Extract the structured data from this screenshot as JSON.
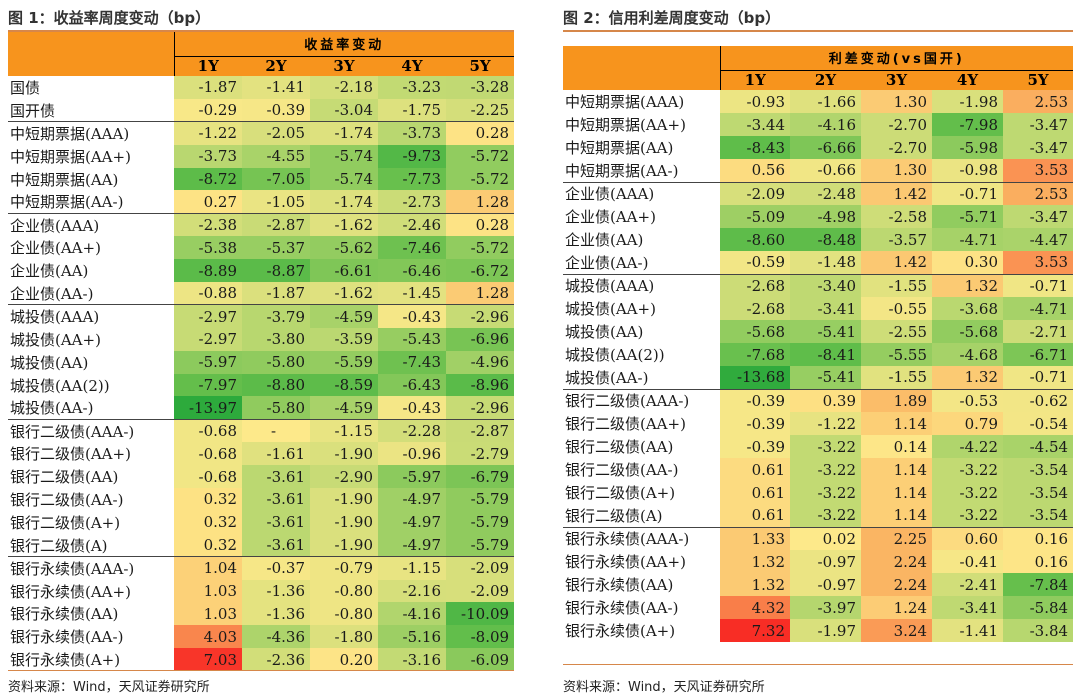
{
  "colors": {
    "accent": "#f7941d",
    "rule": "#d6874a"
  },
  "left": {
    "title": "图 1：收益率周度变动（bp）",
    "header_top": "收益率变动",
    "years": [
      "1Y",
      "2Y",
      "3Y",
      "4Y",
      "5Y"
    ],
    "source": "资料来源：Wind，天风证券研究所",
    "rows": [
      {
        "label": "国债",
        "values": [
          "-1.87",
          "-1.41",
          "-2.18",
          "-3.23",
          "-3.28"
        ],
        "group_start": false
      },
      {
        "label": "国开债",
        "values": [
          "-0.29",
          "-0.39",
          "-3.04",
          "-1.75",
          "-2.25"
        ],
        "group_start": false
      },
      {
        "label": "中短期票据(AAA)",
        "values": [
          "-1.22",
          "-2.05",
          "-1.74",
          "-3.73",
          "0.28"
        ],
        "group_start": true
      },
      {
        "label": "中短期票据(AA+)",
        "values": [
          "-3.73",
          "-4.55",
          "-5.74",
          "-9.73",
          "-5.72"
        ],
        "group_start": false
      },
      {
        "label": "中短期票据(AA)",
        "values": [
          "-8.72",
          "-7.05",
          "-5.74",
          "-7.73",
          "-5.72"
        ],
        "group_start": false
      },
      {
        "label": "中短期票据(AA-)",
        "values": [
          "0.27",
          "-1.05",
          "-1.74",
          "-2.73",
          "1.28"
        ],
        "group_start": false
      },
      {
        "label": "企业债(AAA)",
        "values": [
          "-2.38",
          "-2.87",
          "-1.62",
          "-2.46",
          "0.28"
        ],
        "group_start": true
      },
      {
        "label": "企业债(AA+)",
        "values": [
          "-5.38",
          "-5.37",
          "-5.62",
          "-7.46",
          "-5.72"
        ],
        "group_start": false
      },
      {
        "label": "企业债(AA)",
        "values": [
          "-8.89",
          "-8.87",
          "-6.61",
          "-6.46",
          "-6.72"
        ],
        "group_start": false
      },
      {
        "label": "企业债(AA-)",
        "values": [
          "-0.88",
          "-1.87",
          "-1.62",
          "-1.45",
          "1.28"
        ],
        "group_start": false
      },
      {
        "label": "城投债(AAA)",
        "values": [
          "-2.97",
          "-3.79",
          "-4.59",
          "-0.43",
          "-2.96"
        ],
        "group_start": true
      },
      {
        "label": "城投债(AA+)",
        "values": [
          "-2.97",
          "-3.80",
          "-3.59",
          "-5.43",
          "-6.96"
        ],
        "group_start": false
      },
      {
        "label": "城投债(AA)",
        "values": [
          "-5.97",
          "-5.80",
          "-5.59",
          "-7.43",
          "-4.96"
        ],
        "group_start": false
      },
      {
        "label": "城投债(AA(2))",
        "values": [
          "-7.97",
          "-8.80",
          "-8.59",
          "-6.43",
          "-8.96"
        ],
        "group_start": false
      },
      {
        "label": "城投债(AA-)",
        "values": [
          "-13.97",
          "-5.80",
          "-4.59",
          "-0.43",
          "-2.96"
        ],
        "group_start": false
      },
      {
        "label": "银行二级债(AAA-)",
        "values": [
          "-0.68",
          "-",
          "-1.15",
          "-2.28",
          "-2.87"
        ],
        "group_start": true
      },
      {
        "label": "银行二级债(AA+)",
        "values": [
          "-0.68",
          "-1.61",
          "-1.90",
          "-0.96",
          "-2.79"
        ],
        "group_start": false
      },
      {
        "label": "银行二级债(AA)",
        "values": [
          "-0.68",
          "-3.61",
          "-2.90",
          "-5.97",
          "-6.79"
        ],
        "group_start": false
      },
      {
        "label": "银行二级债(AA-)",
        "values": [
          "0.32",
          "-3.61",
          "-1.90",
          "-4.97",
          "-5.79"
        ],
        "group_start": false
      },
      {
        "label": "银行二级债(A+)",
        "values": [
          "0.32",
          "-3.61",
          "-1.90",
          "-4.97",
          "-5.79"
        ],
        "group_start": false
      },
      {
        "label": "银行二级债(A)",
        "values": [
          "0.32",
          "-3.61",
          "-1.90",
          "-4.97",
          "-5.79"
        ],
        "group_start": false
      },
      {
        "label": "银行永续债(AAA-)",
        "values": [
          "1.04",
          "-0.37",
          "-0.79",
          "-1.15",
          "-2.09"
        ],
        "group_start": true
      },
      {
        "label": "银行永续债(AA+)",
        "values": [
          "1.03",
          "-1.36",
          "-0.80",
          "-2.16",
          "-2.09"
        ],
        "group_start": false
      },
      {
        "label": "银行永续债(AA)",
        "values": [
          "1.03",
          "-1.36",
          "-0.80",
          "-4.16",
          "-10.09"
        ],
        "group_start": false
      },
      {
        "label": "银行永续债(AA-)",
        "values": [
          "4.03",
          "-4.36",
          "-1.80",
          "-5.16",
          "-8.09"
        ],
        "group_start": false
      },
      {
        "label": "银行永续债(A+)",
        "values": [
          "7.03",
          "-2.36",
          "0.20",
          "-3.16",
          "-6.09"
        ],
        "group_start": false
      }
    ]
  },
  "right": {
    "title": "图 2：信用利差周度变动（bp）",
    "header_top": "利差变动(vs国开)",
    "years": [
      "1Y",
      "2Y",
      "3Y",
      "4Y",
      "5Y"
    ],
    "source": "资料来源：Wind，天风证券研究所",
    "rows": [
      {
        "label": "中短期票据(AAA)",
        "values": [
          "-0.93",
          "-1.66",
          "1.30",
          "-1.98",
          "2.53"
        ],
        "group_start": false
      },
      {
        "label": "中短期票据(AA+)",
        "values": [
          "-3.44",
          "-4.16",
          "-2.70",
          "-7.98",
          "-3.47"
        ],
        "group_start": false
      },
      {
        "label": "中短期票据(AA)",
        "values": [
          "-8.43",
          "-6.66",
          "-2.70",
          "-5.98",
          "-3.47"
        ],
        "group_start": false
      },
      {
        "label": "中短期票据(AA-)",
        "values": [
          "0.56",
          "-0.66",
          "1.30",
          "-0.98",
          "3.53"
        ],
        "group_start": false
      },
      {
        "label": "企业债(AAA)",
        "values": [
          "-2.09",
          "-2.48",
          "1.42",
          "-0.71",
          "2.53"
        ],
        "group_start": true
      },
      {
        "label": "企业债(AA+)",
        "values": [
          "-5.09",
          "-4.98",
          "-2.58",
          "-5.71",
          "-3.47"
        ],
        "group_start": false
      },
      {
        "label": "企业债(AA)",
        "values": [
          "-8.60",
          "-8.48",
          "-3.57",
          "-4.71",
          "-4.47"
        ],
        "group_start": false
      },
      {
        "label": "企业债(AA-)",
        "values": [
          "-0.59",
          "-1.48",
          "1.42",
          "0.30",
          "3.53"
        ],
        "group_start": false
      },
      {
        "label": "城投债(AAA)",
        "values": [
          "-2.68",
          "-3.40",
          "-1.55",
          "1.32",
          "-0.71"
        ],
        "group_start": true
      },
      {
        "label": "城投债(AA+)",
        "values": [
          "-2.68",
          "-3.41",
          "-0.55",
          "-3.68",
          "-4.71"
        ],
        "group_start": false
      },
      {
        "label": "城投债(AA)",
        "values": [
          "-5.68",
          "-5.41",
          "-2.55",
          "-5.68",
          "-2.71"
        ],
        "group_start": false
      },
      {
        "label": "城投债(AA(2))",
        "values": [
          "-7.68",
          "-8.41",
          "-5.55",
          "-4.68",
          "-6.71"
        ],
        "group_start": false
      },
      {
        "label": "城投债(AA-)",
        "values": [
          "-13.68",
          "-5.41",
          "-1.55",
          "1.32",
          "-0.71"
        ],
        "group_start": false
      },
      {
        "label": "银行二级债(AAA-)",
        "values": [
          "-0.39",
          "0.39",
          "1.89",
          "-0.53",
          "-0.62"
        ],
        "group_start": true
      },
      {
        "label": "银行二级债(AA+)",
        "values": [
          "-0.39",
          "-1.22",
          "1.14",
          "0.79",
          "-0.54"
        ],
        "group_start": false
      },
      {
        "label": "银行二级债(AA)",
        "values": [
          "-0.39",
          "-3.22",
          "0.14",
          "-4.22",
          "-4.54"
        ],
        "group_start": false
      },
      {
        "label": "银行二级债(AA-)",
        "values": [
          "0.61",
          "-3.22",
          "1.14",
          "-3.22",
          "-3.54"
        ],
        "group_start": false
      },
      {
        "label": "银行二级债(A+)",
        "values": [
          "0.61",
          "-3.22",
          "1.14",
          "-3.22",
          "-3.54"
        ],
        "group_start": false
      },
      {
        "label": "银行二级债(A)",
        "values": [
          "0.61",
          "-3.22",
          "1.14",
          "-3.22",
          "-3.54"
        ],
        "group_start": false
      },
      {
        "label": "银行永续债(AAA-)",
        "values": [
          "1.33",
          "0.02",
          "2.25",
          "0.60",
          "0.16"
        ],
        "group_start": true
      },
      {
        "label": "银行永续债(AA+)",
        "values": [
          "1.32",
          "-0.97",
          "2.24",
          "-0.41",
          "0.16"
        ],
        "group_start": false
      },
      {
        "label": "银行永续债(AA)",
        "values": [
          "1.32",
          "-0.97",
          "2.24",
          "-2.41",
          "-7.84"
        ],
        "group_start": false
      },
      {
        "label": "银行永续债(AA-)",
        "values": [
          "4.32",
          "-3.97",
          "1.24",
          "-3.41",
          "-5.84"
        ],
        "group_start": false
      },
      {
        "label": "银行永续债(A+)",
        "values": [
          "7.32",
          "-1.97",
          "3.24",
          "-1.41",
          "-3.84"
        ],
        "group_start": false
      }
    ]
  }
}
